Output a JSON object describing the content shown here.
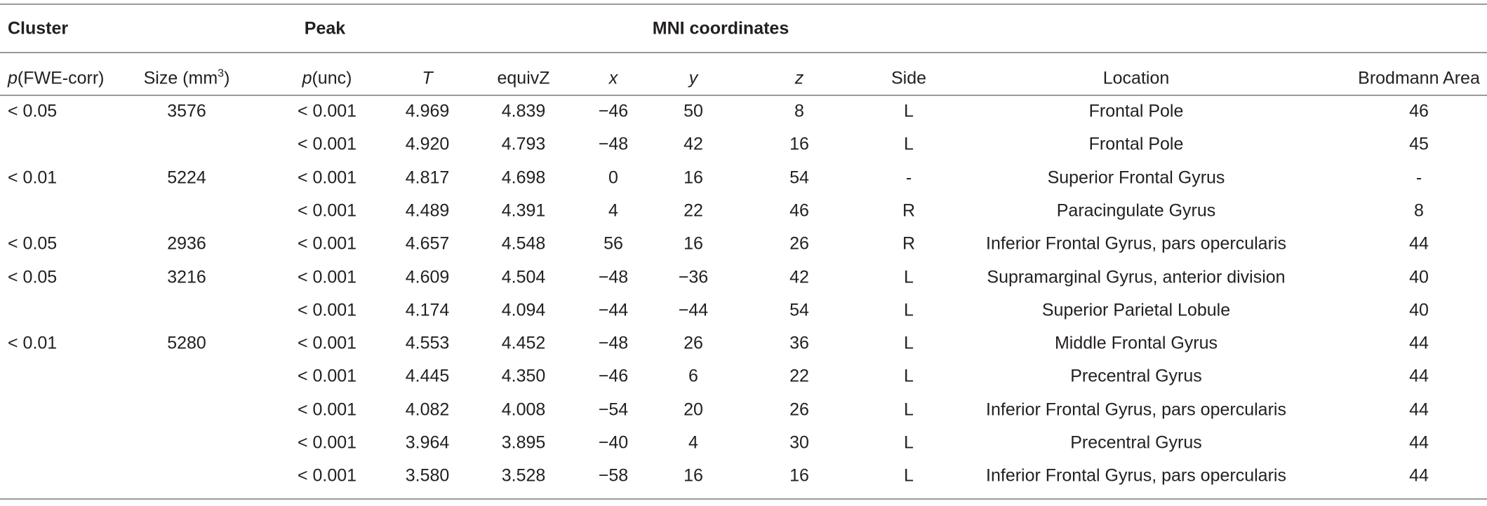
{
  "header": {
    "group_labels": [
      "Cluster",
      "Peak",
      "MNI coordinates"
    ],
    "columns": [
      [
        "p",
        "(FWE-corr)"
      ],
      [
        "Size (mm",
        "3",
        ")"
      ],
      [
        "p",
        "(unc)"
      ],
      [
        "T"
      ],
      [
        "equivZ"
      ],
      [
        "x"
      ],
      [
        "y"
      ],
      [
        "z"
      ],
      [
        "Side"
      ],
      [
        "Location"
      ],
      [
        "Brodmann Area"
      ]
    ]
  },
  "clusters": [
    {
      "p_fwe": "< 0.05",
      "size": "3576",
      "peaks": [
        [
          "< 0.001",
          "4.969",
          "4.839",
          "−46",
          "50",
          "8",
          "L",
          "Frontal Pole",
          "46"
        ],
        [
          "< 0.001",
          "4.920",
          "4.793",
          "−48",
          "42",
          "16",
          "L",
          "Frontal Pole",
          "45"
        ]
      ]
    },
    {
      "p_fwe": "< 0.01",
      "size": "5224",
      "peaks": [
        [
          "< 0.001",
          "4.817",
          "4.698",
          "0",
          "16",
          "54",
          "-",
          "Superior Frontal Gyrus",
          "-"
        ],
        [
          "< 0.001",
          "4.489",
          "4.391",
          "4",
          "22",
          "46",
          "R",
          "Paracingulate Gyrus",
          "8"
        ]
      ]
    },
    {
      "p_fwe": "< 0.05",
      "size": "2936",
      "peaks": [
        [
          "< 0.001",
          "4.657",
          "4.548",
          "56",
          "16",
          "26",
          "R",
          "Inferior Frontal Gyrus, pars opercularis",
          "44"
        ]
      ]
    },
    {
      "p_fwe": "< 0.05",
      "size": "3216",
      "peaks": [
        [
          "< 0.001",
          "4.609",
          "4.504",
          "−48",
          "−36",
          "42",
          "L",
          "Supramarginal Gyrus, anterior division",
          "40"
        ],
        [
          "< 0.001",
          "4.174",
          "4.094",
          "−44",
          "−44",
          "54",
          "L",
          "Superior Parietal Lobule",
          "40"
        ]
      ]
    },
    {
      "p_fwe": "< 0.01",
      "size": "5280",
      "peaks": [
        [
          "< 0.001",
          "4.553",
          "4.452",
          "−48",
          "26",
          "36",
          "L",
          "Middle Frontal Gyrus",
          "44"
        ],
        [
          "< 0.001",
          "4.445",
          "4.350",
          "−46",
          "6",
          "22",
          "L",
          "Precentral Gyrus",
          "44"
        ],
        [
          "< 0.001",
          "4.082",
          "4.008",
          "−54",
          "20",
          "26",
          "L",
          "Inferior Frontal Gyrus, pars opercularis",
          "44"
        ],
        [
          "< 0.001",
          "3.964",
          "3.895",
          "−40",
          "4",
          "30",
          "L",
          "Precentral Gyrus",
          "44"
        ],
        [
          "< 0.001",
          "3.580",
          "3.528",
          "−58",
          "16",
          "16",
          "L",
          "Inferior Frontal Gyrus, pars opercularis",
          "44"
        ]
      ]
    }
  ]
}
